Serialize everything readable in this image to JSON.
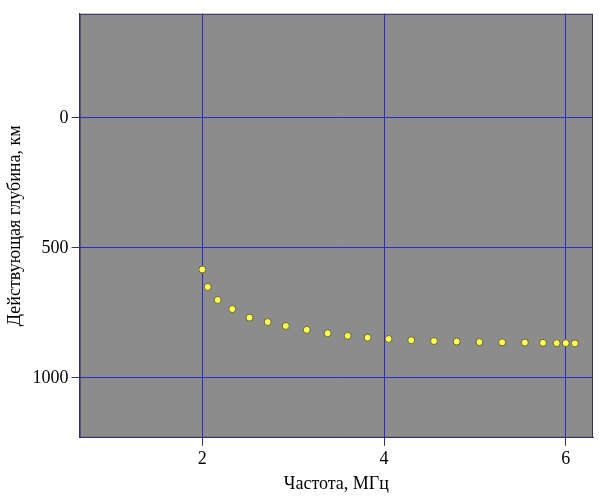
{
  "chart_data": {
    "type": "scatter",
    "x_label": "Частота, МГц",
    "y_label": "Действующая глубина, км",
    "x": [
      2.0,
      2.06,
      2.17,
      2.33,
      2.52,
      2.72,
      2.92,
      3.15,
      3.38,
      3.6,
      3.82,
      4.05,
      4.3,
      4.55,
      4.8,
      5.05,
      5.3,
      5.55,
      5.75,
      5.9,
      6.0,
      6.1
    ],
    "values": [
      583,
      650,
      700,
      735,
      768,
      785,
      800,
      815,
      828,
      838,
      845,
      850,
      855,
      858,
      860,
      862,
      863,
      864,
      865,
      866,
      866,
      867
    ],
    "color": "#ffff55",
    "marker": "circle",
    "xlim": [
      0.65,
      6.3
    ],
    "ylim": [
      -400,
      1230
    ],
    "xticks": [
      2,
      4,
      6
    ],
    "yticks": [
      0,
      500,
      1000
    ],
    "grid": true
  }
}
